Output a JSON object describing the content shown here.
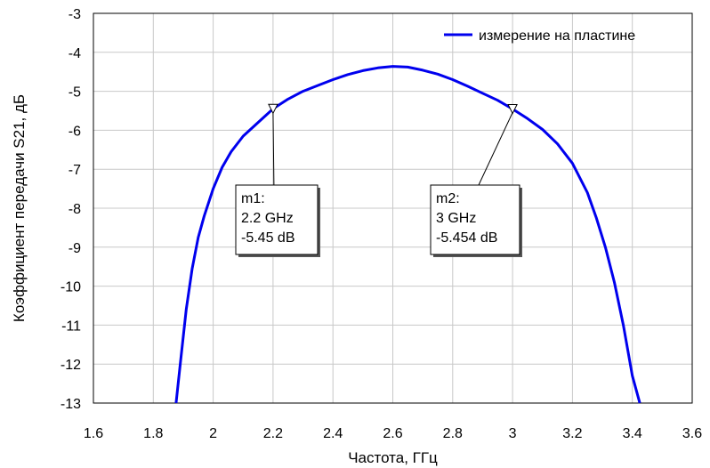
{
  "chart_data": {
    "type": "line",
    "xlabel": "Частота, ГГц",
    "ylabel": "Коэффициент передачи S21, дБ",
    "xlim": [
      1.6,
      3.6
    ],
    "ylim": [
      -13,
      -3
    ],
    "xticks": [
      1.6,
      1.8,
      2,
      2.2,
      2.4,
      2.6,
      2.8,
      3,
      3.2,
      3.4,
      3.6
    ],
    "xtick_labels": [
      "1.6",
      "1.8",
      "2",
      "2.2",
      "2.4",
      "2.6",
      "2.8",
      "3",
      "3.2",
      "3.4",
      "3.6"
    ],
    "yticks": [
      -3,
      -4,
      -5,
      -6,
      -7,
      -8,
      -9,
      -10,
      -11,
      -12,
      -13
    ],
    "ytick_labels": [
      "-3",
      "-4",
      "-5",
      "-6",
      "-7",
      "-8",
      "-9",
      "-10",
      "-11",
      "-12",
      "-13"
    ],
    "grid": true,
    "legend_position": "top-right",
    "series": [
      {
        "name": "измерение на пластине",
        "color": "#0000ee",
        "x": [
          1.876,
          1.89,
          1.91,
          1.93,
          1.95,
          1.97,
          2.0,
          2.03,
          2.06,
          2.1,
          2.15,
          2.2,
          2.25,
          2.3,
          2.35,
          2.4,
          2.45,
          2.5,
          2.55,
          2.6,
          2.65,
          2.7,
          2.75,
          2.8,
          2.85,
          2.9,
          2.95,
          3.0,
          3.05,
          3.1,
          3.15,
          3.2,
          3.25,
          3.28,
          3.31,
          3.34,
          3.37,
          3.4,
          3.425
        ],
        "y": [
          -13.0,
          -12.0,
          -10.6,
          -9.55,
          -8.75,
          -8.2,
          -7.5,
          -6.95,
          -6.55,
          -6.15,
          -5.8,
          -5.45,
          -5.2,
          -5.0,
          -4.85,
          -4.7,
          -4.57,
          -4.47,
          -4.4,
          -4.36,
          -4.38,
          -4.46,
          -4.56,
          -4.7,
          -4.87,
          -5.05,
          -5.23,
          -5.454,
          -5.7,
          -5.98,
          -6.35,
          -6.85,
          -7.6,
          -8.25,
          -9.0,
          -9.9,
          -11.0,
          -12.3,
          -13.0
        ]
      }
    ],
    "markers": [
      {
        "name": "m1",
        "label": "m1:",
        "freq_label": "2.2 GHz",
        "value_label": "-5.45 dB",
        "x": 2.2,
        "y": -5.45
      },
      {
        "name": "m2",
        "label": "m2:",
        "freq_label": "3 GHz",
        "value_label": "-5.454 dB",
        "x": 3.0,
        "y": -5.454
      }
    ]
  }
}
